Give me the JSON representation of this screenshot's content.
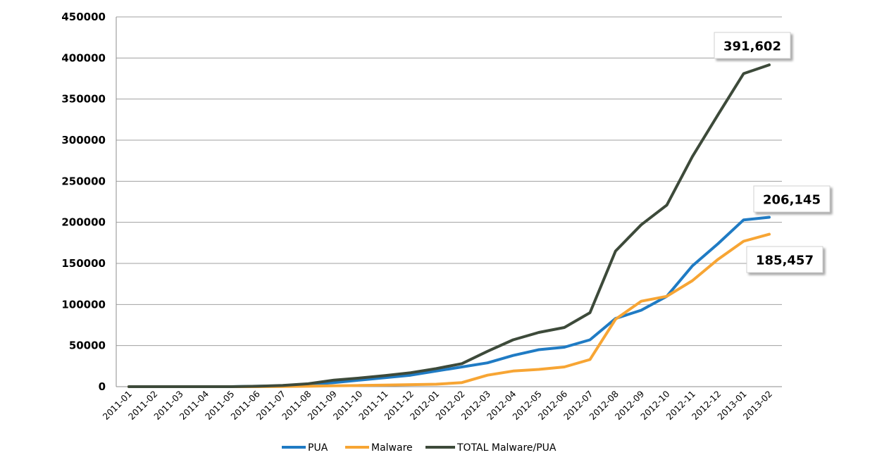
{
  "chart_data": {
    "type": "line",
    "title": "",
    "xlabel": "",
    "ylabel": "",
    "ylim": [
      0,
      450000
    ],
    "yticks": [
      "0",
      "50000",
      "100000",
      "150000",
      "200000",
      "250000",
      "300000",
      "350000",
      "400000",
      "450000"
    ],
    "grid": "horizontal",
    "legend_position": "bottom",
    "categories": [
      "2011-01",
      "2011-02",
      "2011-03",
      "2011-04",
      "2011-05",
      "2011-06",
      "2011-07",
      "2011-08",
      "2011-09",
      "2011-10",
      "2011-11",
      "2011-12",
      "2012-01",
      "2012-02",
      "2012-03",
      "2012-04",
      "2012-05",
      "2012-06",
      "2012-07",
      "2012-08",
      "2012-09",
      "2012-10",
      "2012-11",
      "2012-12",
      "2013-01",
      "2013-02"
    ],
    "series": [
      {
        "name": "PUA",
        "color": "#1f7bc4",
        "values": [
          0,
          0,
          0,
          0,
          0,
          500,
          1000,
          2500,
          5000,
          8000,
          11000,
          14000,
          19000,
          24000,
          29000,
          38000,
          45000,
          48000,
          57000,
          83000,
          93000,
          110000,
          147000,
          174000,
          203000,
          206145
        ]
      },
      {
        "name": "Malware",
        "color": "#f7a534",
        "values": [
          0,
          0,
          0,
          0,
          0,
          0,
          200,
          500,
          1000,
          1500,
          2000,
          2500,
          3000,
          5000,
          14000,
          19000,
          21000,
          24000,
          33000,
          82000,
          104000,
          110000,
          129000,
          155000,
          177000,
          185457
        ]
      },
      {
        "name": "TOTAL Malware/PUA",
        "color": "#3d4a3a",
        "values": [
          0,
          0,
          0,
          0,
          0,
          500,
          1500,
          3500,
          8000,
          10500,
          13500,
          17000,
          22000,
          28000,
          43000,
          57000,
          66000,
          72000,
          90000,
          165000,
          197000,
          221000,
          280000,
          331000,
          381000,
          391602
        ]
      }
    ],
    "callouts": [
      {
        "series": "TOTAL Malware/PUA",
        "label": "391,602"
      },
      {
        "series": "PUA",
        "label": "206,145"
      },
      {
        "series": "Malware",
        "label": "185,457"
      }
    ]
  }
}
